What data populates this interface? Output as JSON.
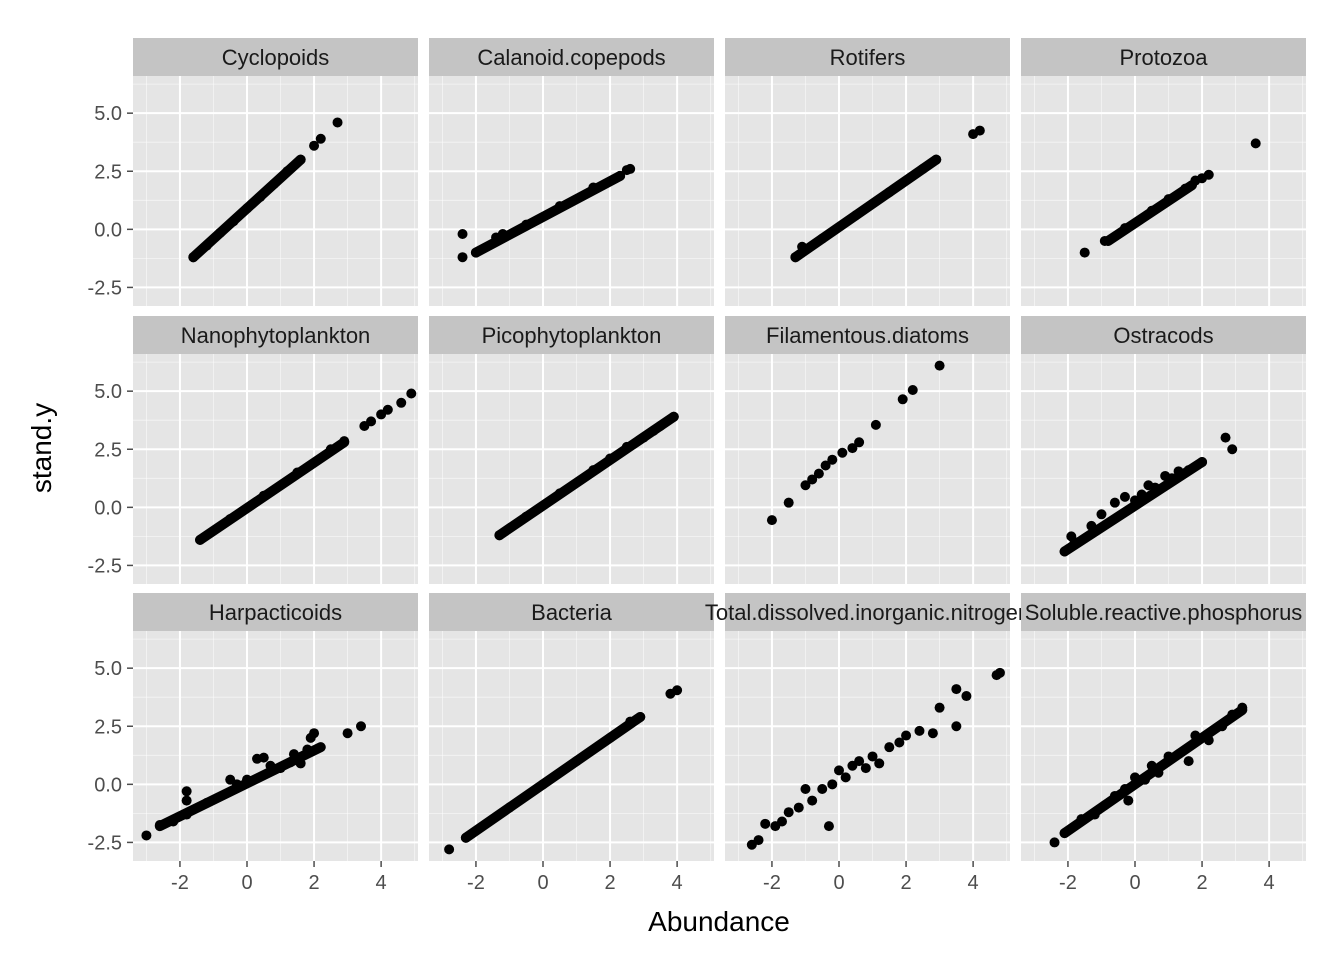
{
  "chart_data": {
    "type": "scatter",
    "layout": "facet-grid-3x4",
    "xlabel": "Abundance",
    "ylabel": "stand.y",
    "xlim": [
      -3.4,
      5.1
    ],
    "ylim": [
      -3.3,
      6.6
    ],
    "x_ticks": [
      "-2",
      "0",
      "2",
      "4"
    ],
    "y_ticks": [
      "-2.5",
      "0.0",
      "2.5",
      "5.0"
    ],
    "x_tick_values": [
      -2,
      0,
      2,
      4
    ],
    "y_tick_values": [
      -2.5,
      0,
      2.5,
      5
    ],
    "colors": {
      "panel_background": "#e5e5e5",
      "grid": "#ffffff",
      "strip": "#c4c4c4",
      "point": "#000000"
    },
    "facets": [
      {
        "name": "Cyclopoids",
        "segments": [
          {
            "x0": -1.6,
            "y0": -1.2,
            "x1": 1.6,
            "y1": 3.0
          }
        ],
        "points": [
          [
            -1.6,
            -1.2
          ],
          [
            -1.2,
            -0.7
          ],
          [
            -0.8,
            -0.15
          ],
          [
            -0.4,
            0.35
          ],
          [
            0.0,
            0.9
          ],
          [
            0.4,
            1.4
          ],
          [
            0.8,
            1.95
          ],
          [
            1.2,
            2.5
          ],
          [
            1.6,
            3.0
          ],
          [
            2.0,
            3.6
          ],
          [
            2.2,
            3.9
          ],
          [
            2.7,
            4.6
          ]
        ]
      },
      {
        "name": "Calanoid.copepods",
        "segments": [
          {
            "x0": -2.0,
            "y0": -1.0,
            "x1": 2.3,
            "y1": 2.3
          }
        ],
        "points": [
          [
            -2.4,
            -1.2
          ],
          [
            -2.4,
            -0.2
          ],
          [
            -2.0,
            -1.0
          ],
          [
            -1.4,
            -0.35
          ],
          [
            -1.2,
            -0.2
          ],
          [
            -0.5,
            0.2
          ],
          [
            0.5,
            1.0
          ],
          [
            1.5,
            1.8
          ],
          [
            2.3,
            2.3
          ],
          [
            2.5,
            2.55
          ],
          [
            2.6,
            2.6
          ]
        ]
      },
      {
        "name": "Rotifers",
        "segments": [
          {
            "x0": -1.3,
            "y0": -1.2,
            "x1": 2.9,
            "y1": 3.0
          }
        ],
        "points": [
          [
            -1.3,
            -1.2
          ],
          [
            -1.1,
            -0.75
          ],
          [
            -0.5,
            -0.4
          ],
          [
            0.5,
            0.6
          ],
          [
            1.5,
            1.6
          ],
          [
            2.5,
            2.6
          ],
          [
            2.9,
            3.0
          ],
          [
            4.0,
            4.1
          ],
          [
            4.2,
            4.25
          ]
        ]
      },
      {
        "name": "Protozoa",
        "segments": [
          {
            "x0": -0.8,
            "y0": -0.5,
            "x1": 1.7,
            "y1": 1.9
          }
        ],
        "points": [
          [
            -1.5,
            -1.0
          ],
          [
            -0.9,
            -0.5
          ],
          [
            -0.3,
            0.05
          ],
          [
            0.5,
            0.8
          ],
          [
            1.0,
            1.3
          ],
          [
            1.5,
            1.75
          ],
          [
            1.8,
            2.1
          ],
          [
            2.0,
            2.2
          ],
          [
            2.2,
            2.35
          ],
          [
            3.6,
            3.7
          ]
        ]
      },
      {
        "name": "Nanophytoplankton",
        "segments": [
          {
            "x0": -1.4,
            "y0": -1.4,
            "x1": 2.9,
            "y1": 2.8
          }
        ],
        "points": [
          [
            -1.4,
            -1.4
          ],
          [
            -0.5,
            -0.5
          ],
          [
            0.5,
            0.5
          ],
          [
            1.5,
            1.5
          ],
          [
            2.5,
            2.5
          ],
          [
            2.9,
            2.85
          ],
          [
            3.5,
            3.5
          ],
          [
            3.7,
            3.7
          ],
          [
            4.0,
            4.0
          ],
          [
            4.2,
            4.2
          ],
          [
            4.6,
            4.5
          ],
          [
            4.9,
            4.9
          ]
        ]
      },
      {
        "name": "Picophytoplankton",
        "segments": [
          {
            "x0": -1.3,
            "y0": -1.2,
            "x1": 3.9,
            "y1": 3.9
          }
        ],
        "points": [
          [
            -1.3,
            -1.2
          ],
          [
            -0.5,
            -0.4
          ],
          [
            0.5,
            0.6
          ],
          [
            1.5,
            1.6
          ],
          [
            2.0,
            2.1
          ],
          [
            2.5,
            2.6
          ],
          [
            3.0,
            3.0
          ],
          [
            3.3,
            3.3
          ],
          [
            3.5,
            3.5
          ],
          [
            3.9,
            3.9
          ]
        ]
      },
      {
        "name": "Filamentous.diatoms",
        "segments": [],
        "points": [
          [
            -2.0,
            -0.55
          ],
          [
            -1.5,
            0.2
          ],
          [
            -1.0,
            0.95
          ],
          [
            -0.8,
            1.2
          ],
          [
            -0.6,
            1.45
          ],
          [
            -0.4,
            1.8
          ],
          [
            -0.2,
            2.05
          ],
          [
            0.1,
            2.35
          ],
          [
            0.4,
            2.55
          ],
          [
            0.6,
            2.8
          ],
          [
            1.1,
            3.55
          ],
          [
            1.9,
            4.65
          ],
          [
            2.2,
            5.05
          ],
          [
            3.0,
            6.1
          ]
        ]
      },
      {
        "name": "Ostracods",
        "segments": [
          {
            "x0": -2.1,
            "y0": -1.9,
            "x1": 2.0,
            "y1": 1.95
          }
        ],
        "points": [
          [
            -2.1,
            -1.9
          ],
          [
            -1.9,
            -1.25
          ],
          [
            -1.8,
            -1.5
          ],
          [
            -1.3,
            -0.8
          ],
          [
            -1.0,
            -0.3
          ],
          [
            -0.6,
            0.2
          ],
          [
            -0.3,
            0.45
          ],
          [
            0.0,
            0.3
          ],
          [
            0.2,
            0.55
          ],
          [
            0.4,
            0.95
          ],
          [
            0.6,
            0.85
          ],
          [
            0.9,
            1.35
          ],
          [
            1.1,
            1.25
          ],
          [
            1.3,
            1.55
          ],
          [
            1.6,
            1.6
          ],
          [
            2.0,
            1.95
          ],
          [
            2.7,
            3.0
          ],
          [
            2.9,
            2.5
          ]
        ]
      },
      {
        "name": "Harpacticoids",
        "segments": [
          {
            "x0": -2.6,
            "y0": -1.8,
            "x1": 2.2,
            "y1": 1.6
          }
        ],
        "points": [
          [
            -3.0,
            -2.2
          ],
          [
            -2.6,
            -1.75
          ],
          [
            -2.2,
            -1.6
          ],
          [
            -1.8,
            -1.3
          ],
          [
            -1.8,
            -0.3
          ],
          [
            -1.8,
            -0.7
          ],
          [
            -1.2,
            -0.8
          ],
          [
            -0.5,
            0.2
          ],
          [
            -0.3,
            0.0
          ],
          [
            0.0,
            0.2
          ],
          [
            0.3,
            1.1
          ],
          [
            0.5,
            1.15
          ],
          [
            0.7,
            0.8
          ],
          [
            1.0,
            0.7
          ],
          [
            1.3,
            0.95
          ],
          [
            1.4,
            1.3
          ],
          [
            1.6,
            0.9
          ],
          [
            1.8,
            1.5
          ],
          [
            1.9,
            2.0
          ],
          [
            2.0,
            2.2
          ],
          [
            3.0,
            2.2
          ],
          [
            3.4,
            2.5
          ]
        ]
      },
      {
        "name": "Bacteria",
        "segments": [
          {
            "x0": -2.3,
            "y0": -2.3,
            "x1": 2.9,
            "y1": 2.9
          }
        ],
        "points": [
          [
            -2.8,
            -2.8
          ],
          [
            -2.3,
            -2.3
          ],
          [
            -1.0,
            -1.0
          ],
          [
            0.0,
            0.0
          ],
          [
            1.0,
            1.0
          ],
          [
            2.0,
            2.0
          ],
          [
            2.6,
            2.7
          ],
          [
            2.9,
            2.9
          ],
          [
            3.8,
            3.9
          ],
          [
            4.0,
            4.05
          ]
        ]
      },
      {
        "name": "Total.dissolved.inorganic.nitrogen",
        "segments": [],
        "points": [
          [
            -2.6,
            -2.6
          ],
          [
            -2.4,
            -2.4
          ],
          [
            -2.2,
            -1.7
          ],
          [
            -1.9,
            -1.8
          ],
          [
            -1.7,
            -1.6
          ],
          [
            -1.5,
            -1.2
          ],
          [
            -1.2,
            -1.0
          ],
          [
            -1.0,
            -0.2
          ],
          [
            -0.8,
            -0.7
          ],
          [
            -0.5,
            -0.2
          ],
          [
            -0.3,
            -1.8
          ],
          [
            -0.2,
            0.0
          ],
          [
            0.0,
            0.6
          ],
          [
            0.2,
            0.3
          ],
          [
            0.4,
            0.8
          ],
          [
            0.6,
            1.0
          ],
          [
            0.8,
            0.7
          ],
          [
            1.0,
            1.2
          ],
          [
            1.2,
            0.9
          ],
          [
            1.5,
            1.6
          ],
          [
            1.8,
            1.8
          ],
          [
            2.0,
            2.1
          ],
          [
            2.4,
            2.3
          ],
          [
            2.8,
            2.2
          ],
          [
            3.0,
            3.3
          ],
          [
            3.5,
            2.5
          ],
          [
            3.5,
            4.1
          ],
          [
            3.8,
            3.8
          ],
          [
            4.7,
            4.7
          ],
          [
            4.8,
            4.8
          ]
        ]
      },
      {
        "name": "Soluble.reactive.phosphorus",
        "segments": [
          {
            "x0": -2.1,
            "y0": -2.1,
            "x1": 3.2,
            "y1": 3.2
          }
        ],
        "points": [
          [
            -2.4,
            -2.5
          ],
          [
            -2.1,
            -2.1
          ],
          [
            -1.6,
            -1.5
          ],
          [
            -1.2,
            -1.3
          ],
          [
            -0.9,
            -0.9
          ],
          [
            -0.6,
            -0.5
          ],
          [
            -0.3,
            -0.2
          ],
          [
            -0.2,
            -0.7
          ],
          [
            0.0,
            0.3
          ],
          [
            0.3,
            0.2
          ],
          [
            0.5,
            0.8
          ],
          [
            0.7,
            0.5
          ],
          [
            1.0,
            1.2
          ],
          [
            1.3,
            1.3
          ],
          [
            1.6,
            1.0
          ],
          [
            1.8,
            2.1
          ],
          [
            2.2,
            1.9
          ],
          [
            2.6,
            2.5
          ],
          [
            2.9,
            3.0
          ],
          [
            3.2,
            3.3
          ]
        ]
      }
    ]
  }
}
